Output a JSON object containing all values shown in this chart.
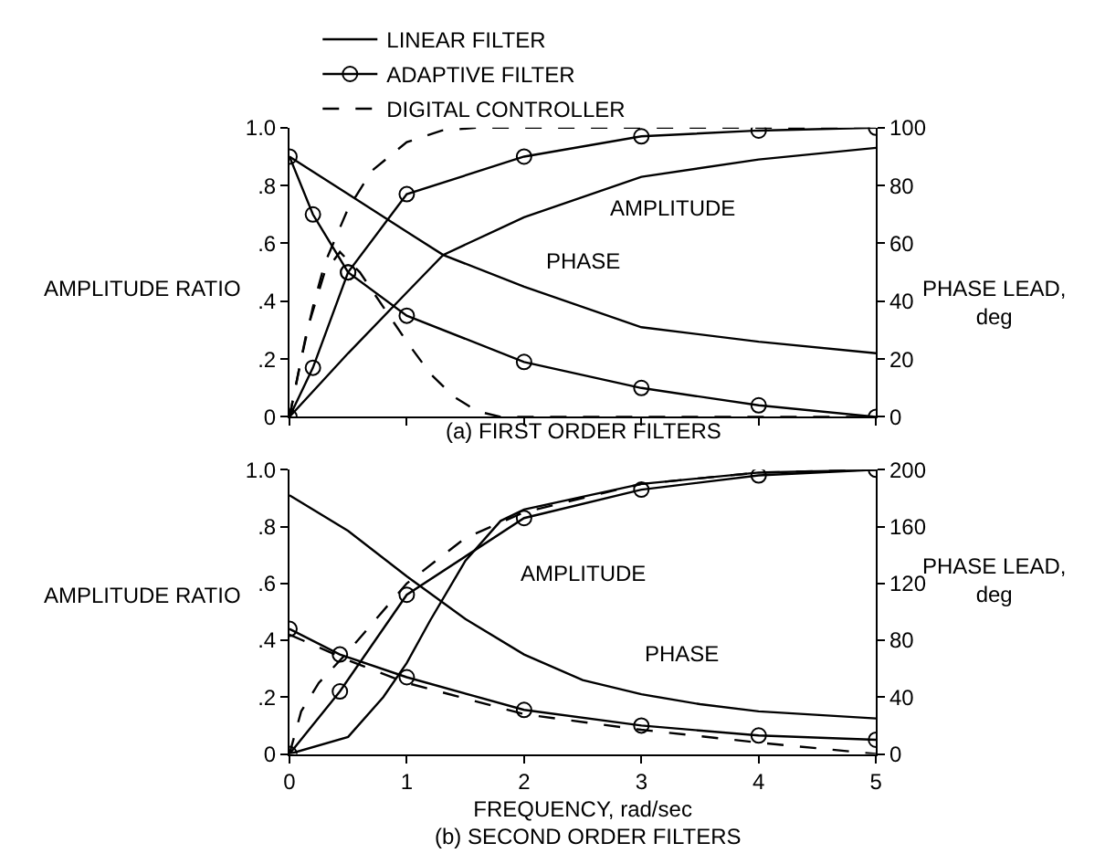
{
  "chart_data": [
    {
      "type": "line",
      "ylabel": "AMPLITUDE RATIO",
      "y2label": "PHASE LEAD, deg",
      "annotations": [
        "AMPLITUDE",
        "PHASE",
        "(a) FIRST ORDER FILTERS"
      ],
      "legend": "top",
      "tick_labels": "y",
      "xlim": [
        0,
        5
      ],
      "xticks": [
        0,
        1,
        2,
        3,
        4,
        5
      ],
      "ylim": [
        0,
        1
      ],
      "yticks": [
        0,
        {
          "value": 0.2,
          "label": ".2"
        },
        {
          "value": 0.4,
          "label": ".4"
        },
        {
          "value": 0.6,
          "label": ".6"
        },
        {
          "value": 0.8,
          "label": ".8"
        },
        {
          "value": 1,
          "label": "1.0"
        }
      ],
      "y2lim": [
        0,
        100
      ],
      "y2ticks": [
        0,
        20,
        40,
        60,
        80,
        100
      ],
      "series": [
        {
          "name": "LINEAR FILTER",
          "color": "#000000",
          "line_style": "solid",
          "marker": "none",
          "x": [
            0,
            0.5,
            1,
            1.31,
            2,
            3,
            4,
            5
          ],
          "values": [
            0,
            0.22,
            0.43,
            0.56,
            0.69,
            0.83,
            0.89,
            0.93
          ]
        },
        {
          "name": "ADAPTIVE FILTER",
          "color": "#000000",
          "line_style": "solid",
          "marker": "circle",
          "x": [
            0,
            0.2,
            0.5,
            1,
            2,
            3,
            4,
            5
          ],
          "values": [
            0,
            0.17,
            0.5,
            0.77,
            0.9,
            0.97,
            0.99,
            1.0
          ]
        },
        {
          "name": "DIGITAL CONTROLLER",
          "color": "#000000",
          "line_style": "dashed",
          "marker": "none",
          "x": [
            0,
            0.1,
            0.2,
            0.3,
            0.5,
            0.7,
            1,
            1.3,
            1.6,
            5
          ],
          "values": [
            0,
            0.2,
            0.38,
            0.53,
            0.72,
            0.85,
            0.95,
            0.99,
            1.0,
            1.0
          ]
        },
        {
          "axis": "y2",
          "color": "#000000",
          "line_style": "solid",
          "marker": "none",
          "x": [
            0,
            0.5,
            1,
            1.31,
            2,
            3,
            4,
            5
          ],
          "values": [
            90,
            77,
            64,
            56,
            45,
            31,
            26,
            22
          ]
        },
        {
          "axis": "y2",
          "color": "#000000",
          "line_style": "solid",
          "marker": "circle",
          "x": [
            0,
            0.2,
            0.5,
            1,
            2,
            3,
            4,
            5
          ],
          "values": [
            90,
            70,
            50,
            35,
            19,
            10,
            4,
            0
          ]
        },
        {
          "axis": "y2",
          "color": "#000000",
          "line_style": "dashed",
          "marker": "none",
          "x": [
            0,
            0.15,
            0.3,
            0.43,
            0.6,
            0.8,
            1,
            1.2,
            1.4,
            1.6,
            1.8,
            5
          ],
          "values": [
            0,
            30,
            50,
            57,
            50,
            38,
            26,
            15,
            7,
            2,
            0,
            0
          ]
        }
      ]
    },
    {
      "type": "line",
      "xlabel": "FREQUENCY, rad/sec",
      "ylabel": "AMPLITUDE RATIO",
      "y2label": "PHASE LEAD, deg",
      "annotations": [
        "AMPLITUDE",
        "PHASE",
        "(b) SECOND ORDER FILTERS"
      ],
      "xlim": [
        0,
        5
      ],
      "xticks": [
        0,
        1,
        2,
        3,
        4,
        5
      ],
      "ylim": [
        0,
        1
      ],
      "yticks": [
        0,
        {
          "value": 0.2,
          "label": ".2"
        },
        {
          "value": 0.4,
          "label": ".4"
        },
        {
          "value": 0.6,
          "label": ".6"
        },
        {
          "value": 0.8,
          "label": ".8"
        },
        {
          "value": 1,
          "label": "1.0"
        }
      ],
      "y2lim": [
        0,
        200
      ],
      "y2ticks": [
        0,
        40,
        80,
        120,
        160,
        200
      ],
      "series": [
        {
          "color": "#000000",
          "line_style": "solid",
          "marker": "none",
          "x": [
            0,
            0.5,
            0.8,
            1,
            1.2,
            1.5,
            1.8,
            2,
            3,
            4,
            5
          ],
          "values": [
            0,
            0.06,
            0.2,
            0.32,
            0.47,
            0.68,
            0.82,
            0.86,
            0.95,
            0.99,
            1.0
          ]
        },
        {
          "color": "#000000",
          "line_style": "solid",
          "marker": "circle",
          "x": [
            0,
            0.43,
            1,
            2,
            3,
            4,
            5
          ],
          "values": [
            0,
            0.22,
            0.56,
            0.83,
            0.93,
            0.98,
            1.0
          ]
        },
        {
          "color": "#000000",
          "line_style": "dashed",
          "marker": "none",
          "x": [
            0,
            0.1,
            0.25,
            0.5,
            1,
            1.5,
            2,
            3,
            4,
            5
          ],
          "values": [
            0,
            0.15,
            0.25,
            0.36,
            0.6,
            0.76,
            0.85,
            0.95,
            0.99,
            1.0
          ]
        },
        {
          "axis": "y2",
          "color": "#000000",
          "line_style": "solid",
          "marker": "none",
          "x": [
            0,
            0.5,
            1,
            1.5,
            2,
            2.5,
            3,
            3.5,
            4,
            5
          ],
          "values": [
            182,
            157,
            125,
            95,
            70,
            52,
            42,
            35,
            30,
            25
          ]
        },
        {
          "axis": "y2",
          "color": "#000000",
          "line_style": "solid",
          "marker": "circle",
          "x": [
            0,
            0.43,
            1,
            2,
            3,
            4,
            5
          ],
          "values": [
            88,
            70,
            54,
            31,
            20,
            13,
            10
          ]
        },
        {
          "axis": "y2",
          "color": "#000000",
          "line_style": "dashed",
          "marker": "none",
          "x": [
            0,
            0.5,
            1,
            2,
            3,
            4,
            5
          ],
          "values": [
            84,
            66,
            50,
            28,
            17,
            8,
            0
          ]
        }
      ]
    }
  ]
}
